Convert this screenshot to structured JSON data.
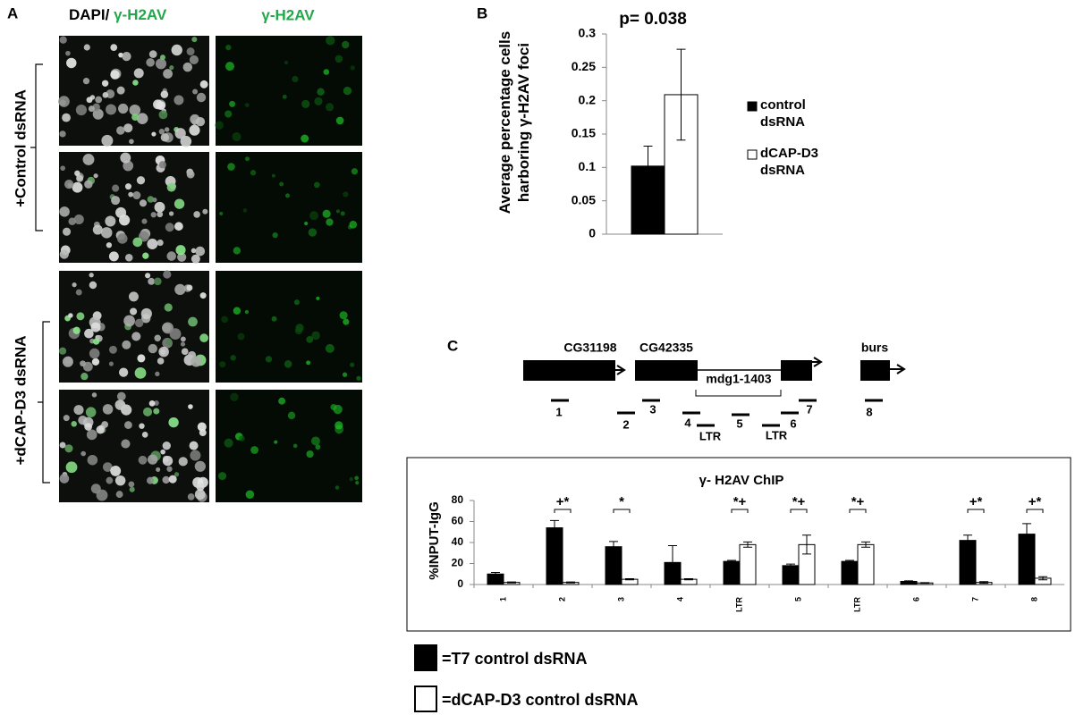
{
  "panels": [
    "A",
    "B",
    "C"
  ],
  "panel_a": {
    "header_merge": "DAPI/",
    "header_merge_green": "γ-H2AV",
    "header_green": "γ-H2AV",
    "row_labels": [
      "+Control dsRNA",
      "+dCAP-D3 dsRNA"
    ]
  },
  "diagram": {
    "genes": [
      "CG31198",
      "CG42335",
      "burs"
    ],
    "element": "mdg1-1403",
    "primers": [
      "1",
      "2",
      "3",
      "4",
      "LTR",
      "5",
      "LTR",
      "6",
      "7",
      "8"
    ]
  },
  "chart_data": [
    {
      "type": "bar",
      "title": "p= 0.038",
      "ylabel": "Average percentage cells harboring γ-H2AV foci",
      "categories": [
        null
      ],
      "series": [
        {
          "name": "control dsRNA",
          "color": "#000000",
          "values": [
            0.102
          ],
          "errors": [
            0.03
          ]
        },
        {
          "name": "dCAP-D3 dsRNA",
          "color": "#ffffff",
          "values": [
            0.209
          ],
          "errors": [
            0.068
          ]
        }
      ],
      "ylim": [
        0,
        0.3
      ],
      "yticks": [
        0,
        0.05,
        0.1,
        0.15,
        0.2,
        0.25,
        0.3
      ],
      "legend": "right"
    },
    {
      "type": "bar",
      "title": "γ- H2AV ChIP",
      "ylabel": "%INPUT-IgG",
      "categories": [
        "1",
        "2",
        "3",
        "4",
        "LTR",
        "5",
        "LTR",
        "6",
        "7",
        "8"
      ],
      "series": [
        {
          "name": "=T7 control dsRNA",
          "color": "#000000",
          "values": [
            10,
            54,
            36,
            21,
            22,
            18,
            22,
            3,
            42,
            48
          ],
          "errors": [
            1.5,
            7,
            5,
            16,
            1,
            1.5,
            1,
            0.5,
            5,
            10
          ]
        },
        {
          "name": "=dCAP-D3 control dsRNA",
          "color": "#ffffff",
          "values": [
            2,
            2,
            5,
            5,
            38,
            38,
            38,
            1.5,
            2,
            6
          ],
          "errors": [
            0.5,
            0.5,
            0.5,
            0.5,
            2.5,
            9,
            2.5,
            0.3,
            0.8,
            1.5
          ]
        }
      ],
      "significance": [
        null,
        "+*",
        "*",
        null,
        "*+",
        "*+",
        "*+",
        null,
        "+*",
        "+*"
      ],
      "ylim": [
        0,
        80
      ],
      "yticks": [
        0,
        20,
        40,
        60,
        80
      ],
      "legend": "bottom"
    }
  ]
}
